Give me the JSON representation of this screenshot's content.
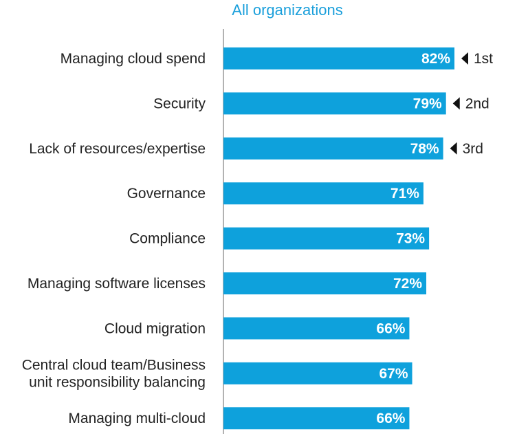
{
  "chart_data": {
    "type": "bar",
    "orientation": "horizontal",
    "title": "All organizations",
    "categories": [
      [
        "Managing cloud spend"
      ],
      [
        "Security"
      ],
      [
        "Lack of resources/expertise"
      ],
      [
        "Governance"
      ],
      [
        "Compliance"
      ],
      [
        "Managing software licenses"
      ],
      [
        "Cloud migration"
      ],
      [
        "Central cloud team/Business",
        "unit responsibility balancing"
      ],
      [
        "Managing multi-cloud"
      ]
    ],
    "values": [
      82,
      79,
      78,
      71,
      73,
      72,
      66,
      67,
      66
    ],
    "value_labels": [
      "82%",
      "79%",
      "78%",
      "71%",
      "73%",
      "72%",
      "66%",
      "67%",
      "66%"
    ],
    "rank_annotations": [
      {
        "category_index": 0,
        "text": "1st"
      },
      {
        "category_index": 1,
        "text": "2nd"
      },
      {
        "category_index": 2,
        "text": "3rd"
      }
    ],
    "xlabel": "",
    "ylabel": "",
    "xlim": [
      0,
      100
    ],
    "grid": false,
    "legend": "none",
    "colors": {
      "bar": "#0ea1dc",
      "title": "#1a9fdb",
      "axis": "#666666",
      "text": "#222222",
      "value_text": "#ffffff"
    }
  }
}
